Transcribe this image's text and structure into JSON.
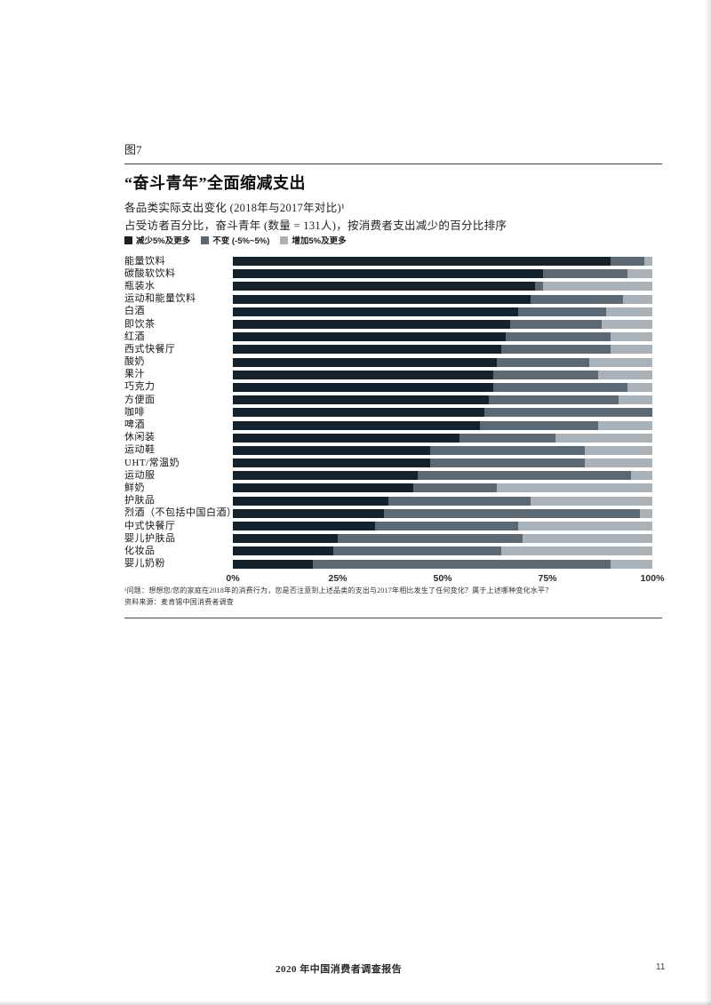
{
  "page": {
    "figure_label": "图7",
    "title": "“奋斗青年”全面缩减支出",
    "subtitle_line1": "各品类实际支出变化 (2018年与2017年对比)¹",
    "subtitle_line2": "占受访者百分比，奋斗青年 (数量 = 131人)，按消费者支出减少的百分比排序"
  },
  "legend": {
    "items": [
      {
        "label": "减少5%及更多",
        "color": "#14222e"
      },
      {
        "label": "不变 (-5%~5%)",
        "color": "#5b6974"
      },
      {
        "label": "增加5%及更多",
        "color": "#a9b2b9"
      }
    ]
  },
  "chart_data": {
    "type": "bar",
    "orientation": "horizontal",
    "stacked": true,
    "unit": "percent of respondents",
    "title": "“奋斗青年”全面缩减支出",
    "xlim": [
      0,
      100
    ],
    "x_ticks": [
      "0%",
      "25%",
      "50%",
      "75%",
      "100%"
    ],
    "x_tick_positions": [
      0,
      25,
      50,
      75,
      100
    ],
    "grid": false,
    "legend_position": "top",
    "categories": [
      "能量饮料",
      "碳酸软饮料",
      "瓶装水",
      "运动和能量饮料",
      "白酒",
      "即饮茶",
      "红酒",
      "西式快餐厅",
      "酸奶",
      "果汁",
      "巧克力",
      "方便面",
      "咖啡",
      "啤酒",
      "休闲装",
      "运动鞋",
      "UHT/常温奶",
      "运动服",
      "鲜奶",
      "护肤品",
      "烈酒（不包括中国白酒）",
      "中式快餐厅",
      "婴儿护肤品",
      "化妆品",
      "婴儿奶粉"
    ],
    "series": [
      {
        "name": "减少5%及更多",
        "color": "#14222e",
        "values": [
          90,
          74,
          72,
          71,
          68,
          66,
          65,
          64,
          63,
          62,
          62,
          61,
          60,
          59,
          54,
          47,
          47,
          44,
          43,
          37,
          36,
          34,
          25,
          24,
          19
        ]
      },
      {
        "name": "不变 (-5%~5%)",
        "color": "#5b6974",
        "values": [
          8,
          20,
          2,
          22,
          21,
          22,
          25,
          26,
          22,
          25,
          32,
          31,
          40,
          28,
          23,
          37,
          37,
          51,
          20,
          34,
          61,
          34,
          44,
          40,
          71
        ]
      },
      {
        "name": "增加5%及更多",
        "color": "#a9b2b9",
        "values": [
          2,
          6,
          26,
          7,
          11,
          12,
          10,
          10,
          15,
          13,
          6,
          8,
          0,
          13,
          23,
          16,
          16,
          5,
          37,
          29,
          3,
          32,
          31,
          36,
          10
        ]
      }
    ]
  },
  "footnotes": {
    "question": "¹问题：想想您/您的家庭在2018年的消费行为，您是否注意到上述品类的支出与2017年相比发生了任何变化？属于上述哪种变化水平？",
    "source": "资料来源：麦肯锡中国消费者调查"
  },
  "footer": {
    "report_title": "2020 年中国消费者调查报告",
    "page_number": "11"
  }
}
